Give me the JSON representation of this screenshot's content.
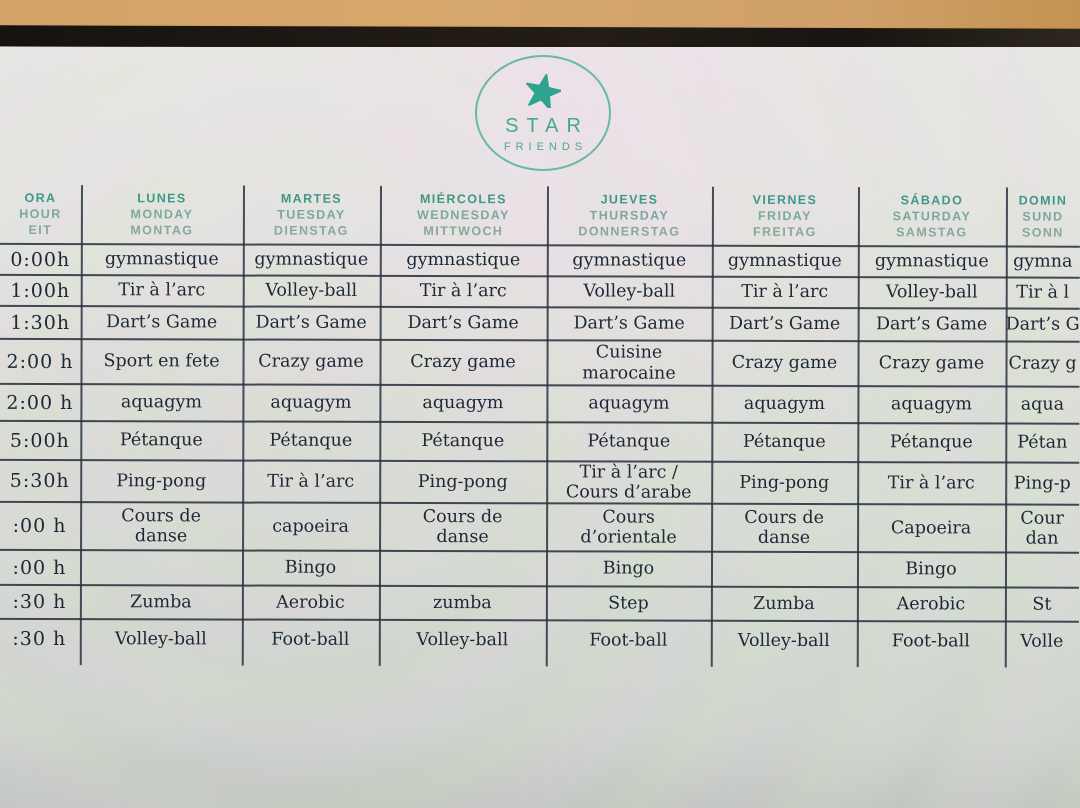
{
  "logo": {
    "line1": "STAR",
    "line2": "FRIENDS",
    "icon": "starfish-icon"
  },
  "table": {
    "header": {
      "time_lines": [
        "ORA",
        "HOUR",
        "EIT"
      ],
      "days": [
        {
          "es": "LUNES",
          "en": "MONDAY",
          "de": "MONTAG"
        },
        {
          "es": "MARTES",
          "en": "TUESDAY",
          "de": "DIENSTAG"
        },
        {
          "es": "MIÉRCOLES",
          "en": "WEDNESDAY",
          "de": "MITTWOCH"
        },
        {
          "es": "JUEVES",
          "en": "THURSDAY",
          "de": "DONNERSTAG"
        },
        {
          "es": "VIERNES",
          "en": "FRIDAY",
          "de": "FREITAG"
        },
        {
          "es": "SÁBADO",
          "en": "SATURDAY",
          "de": "SAMSTAG"
        },
        {
          "es": "DOMIN",
          "en": "SUND",
          "de": "SONN"
        }
      ]
    },
    "rows": [
      {
        "time": "0:00h",
        "cells": [
          "gymnastique",
          "gymnastique",
          "gymnastique",
          "gymnastique",
          "gymnastique",
          "gymnastique",
          "gymna"
        ]
      },
      {
        "time": "1:00h",
        "cells": [
          "Tir à l’arc",
          "Volley-ball",
          "Tir à l’arc",
          "Volley-ball",
          "Tir à l’arc",
          "Volley-ball",
          "Tir à l"
        ]
      },
      {
        "time": "1:30h",
        "cells": [
          "Dart’s Game",
          "Dart’s Game",
          "Dart’s Game",
          "Dart’s Game",
          "Dart’s Game",
          "Dart’s Game",
          "Dart’s G"
        ]
      },
      {
        "time": "2:00 h",
        "cells": [
          "Sport en fete",
          "Crazy game",
          "Crazy game",
          "Cuisine\nmarocaine",
          "Crazy game",
          "Crazy game",
          "Crazy g"
        ]
      },
      {
        "time": "2:00 h",
        "cells": [
          "aquagym",
          "aquagym",
          "aquagym",
          "aquagym",
          "aquagym",
          "aquagym",
          "aqua"
        ]
      },
      {
        "time": "5:00h",
        "cells": [
          "Pétanque",
          "Pétanque",
          "Pétanque",
          "Pétanque",
          "Pétanque",
          "Pétanque",
          "Pétan"
        ]
      },
      {
        "time": "5:30h",
        "cells": [
          "Ping-pong",
          "Tir à l’arc",
          "Ping-pong",
          "Tir à l’arc /\nCours d’arabe",
          "Ping-pong",
          "Tir à l’arc",
          "Ping-p"
        ]
      },
      {
        "time": ":00 h",
        "cells": [
          "Cours de\ndanse",
          "capoeira",
          "Cours de\ndanse",
          "Cours\nd’orientale",
          "Cours de\ndanse",
          "Capoeira",
          "Cour\ndan"
        ]
      },
      {
        "time": ":00 h",
        "cells": [
          "",
          "Bingo",
          "",
          "Bingo",
          "",
          "Bingo",
          ""
        ]
      },
      {
        "time": ":30 h",
        "cells": [
          "Zumba",
          "Aerobic",
          "zumba",
          "Step",
          "Zumba",
          "Aerobic",
          "St"
        ]
      },
      {
        "time": ":30 h",
        "cells": [
          "Volley-ball",
          "Foot-ball",
          "Volley-ball",
          "Foot-ball",
          "Volley-ball",
          "Foot-ball",
          "Volle"
        ]
      }
    ]
  },
  "colors": {
    "accent_teal": "#3fa892",
    "header_es": "#41968a",
    "header_en_de": "#7aa8a1",
    "ink": "#1d2836",
    "grid_line": "#28333f",
    "wall": "#d4a266",
    "bezel": "#1c1611"
  }
}
